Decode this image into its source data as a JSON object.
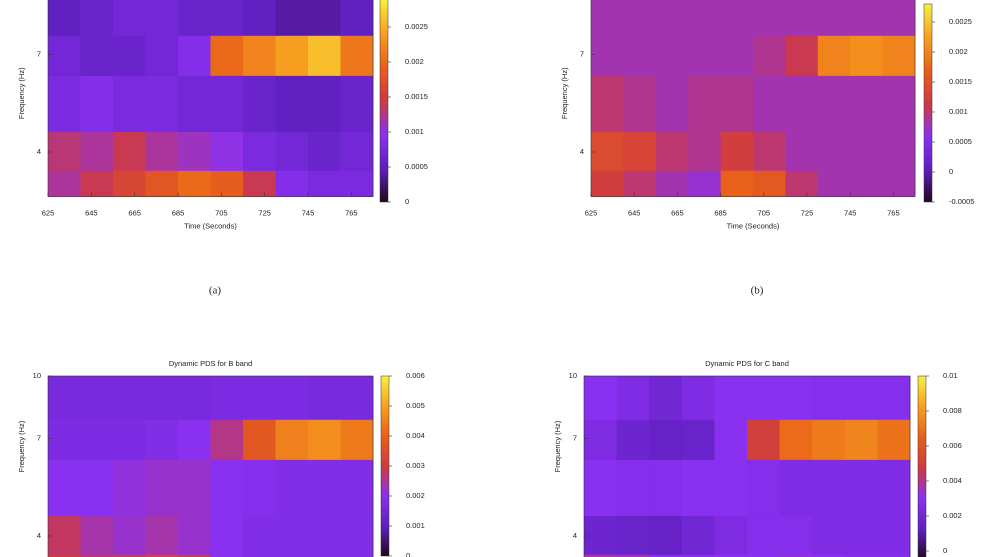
{
  "chart_data": [
    {
      "type": "heatmap",
      "xlabel": "Time (Seconds)",
      "ylabel": "Frequency (Hz)",
      "log_y": true,
      "xlim": [
        625,
        775
      ],
      "ylim": [
        3.1,
        10
      ],
      "xticks": [
        625,
        645,
        665,
        685,
        705,
        725,
        745,
        765
      ],
      "yticks": [
        4,
        7
      ],
      "zlim": [
        0,
        0.0029
      ],
      "zticks": [
        0,
        0.0005,
        0.001,
        0.0015,
        0.002,
        0.0025
      ],
      "palette": [
        "#200818",
        "#6020c0",
        "#8a30f0",
        "#d03a40",
        "#e8601a",
        "#f8a020",
        "#f8f040"
      ],
      "x_bins": [
        625,
        640,
        655,
        670,
        685,
        700,
        715,
        730,
        745,
        760,
        775
      ],
      "y_bins": [
        3.1,
        3.6,
        4.5,
        6.2,
        7.8,
        10
      ],
      "z": [
        [
          0.0012,
          0.0014,
          0.0016,
          0.0018,
          0.002,
          0.0019,
          0.0014,
          0.0009,
          0.0008,
          0.0008
        ],
        [
          0.0013,
          0.0012,
          0.0014,
          0.0012,
          0.0011,
          0.001,
          0.0008,
          0.0007,
          0.0006,
          0.0007
        ],
        [
          0.0008,
          0.0009,
          0.0008,
          0.0008,
          0.0007,
          0.0007,
          0.0006,
          0.0005,
          0.0005,
          0.0006
        ],
        [
          0.0007,
          0.0006,
          0.0006,
          0.0007,
          0.0009,
          0.002,
          0.0022,
          0.0024,
          0.0026,
          0.0021
        ],
        [
          0.0005,
          0.0006,
          0.0007,
          0.0007,
          0.0006,
          0.0006,
          0.0005,
          0.0004,
          0.0004,
          0.0005
        ]
      ]
    },
    {
      "type": "heatmap",
      "xlabel": "Time (Seconds)",
      "ylabel": "Frequency (Hz)",
      "log_y": true,
      "xlim": [
        625,
        775
      ],
      "ylim": [
        3.1,
        10
      ],
      "xticks": [
        625,
        645,
        665,
        685,
        705,
        725,
        745,
        765
      ],
      "yticks": [
        4,
        7
      ],
      "zlim": [
        -0.0005,
        0.0028
      ],
      "zticks": [
        -0.0005,
        0,
        0.0005,
        0.001,
        0.0015,
        0.002,
        0.0025
      ],
      "palette": [
        "#200818",
        "#6020c0",
        "#8a30f0",
        "#d03a40",
        "#e8601a",
        "#f8a020",
        "#f8f040"
      ],
      "x_bins": [
        625,
        640,
        655,
        670,
        685,
        700,
        715,
        730,
        745,
        760,
        775
      ],
      "y_bins": [
        3.1,
        3.6,
        4.5,
        6.2,
        7.8,
        10
      ],
      "z": [
        [
          0.0012,
          0.001,
          0.0008,
          0.0007,
          0.0017,
          0.0016,
          0.001,
          0.0008,
          0.0008,
          0.0008
        ],
        [
          0.0014,
          0.0013,
          0.001,
          0.0009,
          0.0012,
          0.001,
          0.0008,
          0.0008,
          0.0008,
          0.0008
        ],
        [
          0.001,
          0.0009,
          0.0008,
          0.0009,
          0.0009,
          0.0008,
          0.0008,
          0.0008,
          0.0008,
          0.0008
        ],
        [
          0.0008,
          0.0008,
          0.0008,
          0.0008,
          0.0008,
          0.0009,
          0.0011,
          0.002,
          0.0021,
          0.002
        ],
        [
          0.0008,
          0.0008,
          0.0008,
          0.0008,
          0.0008,
          0.0008,
          0.0008,
          0.0008,
          0.0008,
          0.0008
        ]
      ]
    },
    {
      "type": "heatmap",
      "title": "Dynamic PDS for B band",
      "ylabel": "Frequency (Hz)",
      "log_y": true,
      "xlim": [
        625,
        775
      ],
      "ylim": [
        3.1,
        10
      ],
      "yticks": [
        4,
        7,
        10
      ],
      "zlim": [
        0,
        0.006
      ],
      "zticks": [
        0,
        0.001,
        0.002,
        0.003,
        0.004,
        0.005,
        0.006
      ],
      "palette": [
        "#200818",
        "#6020c0",
        "#8a30f0",
        "#d03a40",
        "#e8601a",
        "#f8a020",
        "#f8f040"
      ],
      "x_bins": [
        625,
        640,
        655,
        670,
        685,
        700,
        715,
        730,
        745,
        760,
        775
      ],
      "y_bins": [
        3.1,
        3.6,
        4.5,
        6.2,
        7.8,
        10
      ],
      "z": [
        [
          0.003,
          0.0028,
          0.003,
          0.0032,
          0.003,
          0.002,
          0.0018,
          0.0018,
          0.0018,
          0.0018
        ],
        [
          0.0028,
          0.0024,
          0.0022,
          0.0024,
          0.0022,
          0.002,
          0.0018,
          0.0018,
          0.0018,
          0.0018
        ],
        [
          0.002,
          0.002,
          0.0021,
          0.0022,
          0.0022,
          0.002,
          0.0019,
          0.0018,
          0.0018,
          0.0018
        ],
        [
          0.0017,
          0.0017,
          0.0017,
          0.0018,
          0.002,
          0.0026,
          0.0038,
          0.0045,
          0.0047,
          0.0044
        ],
        [
          0.0016,
          0.0016,
          0.0016,
          0.0016,
          0.0016,
          0.0017,
          0.0017,
          0.0017,
          0.0016,
          0.0016
        ]
      ]
    },
    {
      "type": "heatmap",
      "title": "Dynamic PDS for C band",
      "ylabel": "Frequency (Hz)",
      "log_y": true,
      "xlim": [
        625,
        775
      ],
      "ylim": [
        3.1,
        10
      ],
      "yticks": [
        4,
        7,
        10
      ],
      "zlim": [
        -0.0005,
        0.01
      ],
      "zticks": [
        0,
        0.002,
        0.004,
        0.006,
        0.008,
        0.01
      ],
      "palette": [
        "#200818",
        "#6020c0",
        "#8a30f0",
        "#d03a40",
        "#e8601a",
        "#f8a020",
        "#f8f040"
      ],
      "x_bins": [
        625,
        640,
        655,
        670,
        685,
        700,
        715,
        730,
        745,
        760,
        775
      ],
      "y_bins": [
        3.1,
        3.6,
        4.5,
        6.2,
        7.8,
        10
      ],
      "z": [
        [
          0.004,
          0.0038,
          0.003,
          0.0028,
          0.003,
          0.003,
          0.0032,
          0.003,
          0.0028,
          0.0028
        ],
        [
          0.0018,
          0.0016,
          0.0015,
          0.002,
          0.0025,
          0.0028,
          0.0028,
          0.0026,
          0.0026,
          0.0026
        ],
        [
          0.003,
          0.0028,
          0.0028,
          0.003,
          0.003,
          0.0028,
          0.0026,
          0.0026,
          0.0026,
          0.0026
        ],
        [
          0.0025,
          0.0018,
          0.0015,
          0.0016,
          0.003,
          0.005,
          0.0068,
          0.0072,
          0.0075,
          0.007
        ],
        [
          0.003,
          0.0026,
          0.002,
          0.0026,
          0.003,
          0.003,
          0.003,
          0.0028,
          0.0028,
          0.0028
        ]
      ]
    }
  ],
  "captions": [
    "(a)",
    "(b)"
  ]
}
